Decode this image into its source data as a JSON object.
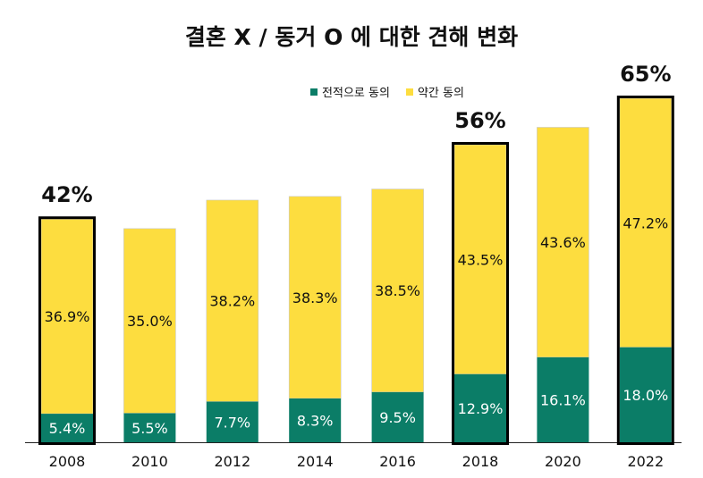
{
  "colors": {
    "agree_fully": "#0b7d67",
    "agree_somewhat": "#fddd3f",
    "highlight_border": "#000000"
  },
  "chart_data": {
    "type": "bar",
    "stacked": true,
    "title": "결혼 X / 동거 O 에 대한 견해 변화",
    "categories": [
      "2008",
      "2010",
      "2012",
      "2014",
      "2016",
      "2018",
      "2020",
      "2022"
    ],
    "series": [
      {
        "name": "전적으로 동의",
        "values": [
          5.4,
          5.5,
          7.7,
          8.3,
          9.5,
          12.9,
          16.1,
          18.0
        ]
      },
      {
        "name": "약간 동의",
        "values": [
          36.9,
          35.0,
          38.2,
          38.3,
          38.5,
          43.5,
          43.6,
          47.2
        ]
      }
    ],
    "data_labels": {
      "전적으로 동의": [
        "5.4%",
        "5.5%",
        "7.7%",
        "8.3%",
        "9.5%",
        "12.9%",
        "16.1%",
        "18.0%"
      ],
      "약간 동의": [
        "36.9%",
        "35.0%",
        "38.2%",
        "38.3%",
        "38.5%",
        "43.5%",
        "43.6%",
        "47.2%"
      ]
    },
    "highlights": [
      {
        "category": "2008",
        "total_label": "42%"
      },
      {
        "category": "2018",
        "total_label": "56%"
      },
      {
        "category": "2022",
        "total_label": "65%"
      }
    ],
    "ylim": [
      0,
      65.2
    ],
    "legend_position": "top-center",
    "grid": false
  }
}
